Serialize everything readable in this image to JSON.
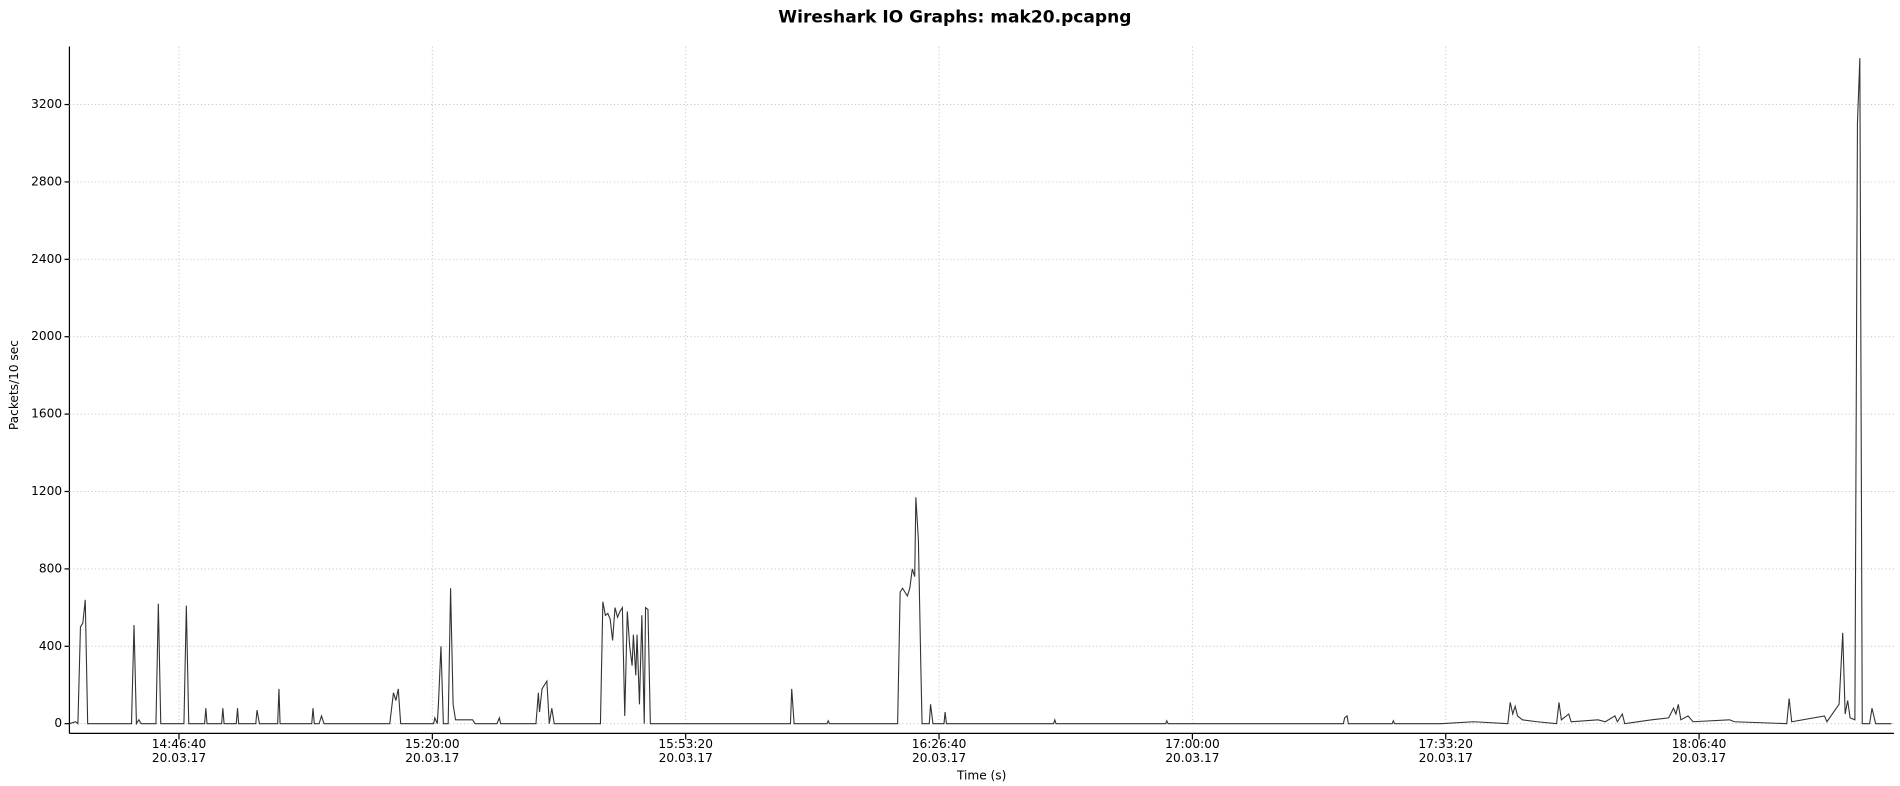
{
  "chart_data": {
    "type": "line",
    "title": "Wireshark IO Graphs: mak20.pcapng",
    "x_label": "Time (s)",
    "y_label": "Packets/10 sec",
    "color": "#333333",
    "grid": true,
    "xlim": [
      "14:32:15",
      "18:32:18"
    ],
    "xticks": [
      {
        "value": "14:46:40",
        "label": "14:46:40\n20.03.17"
      },
      {
        "value": "15:20:00",
        "label": "15:20:00\n20.03.17"
      },
      {
        "value": "15:53:20",
        "label": "15:53:20\n20.03.17"
      },
      {
        "value": "16:26:40",
        "label": "16:26:40\n20.03.17"
      },
      {
        "value": "17:00:00",
        "label": "17:00:00\n20.03.17"
      },
      {
        "value": "17:33:20",
        "label": "17:33:20\n20.03.17"
      },
      {
        "value": "18:06:40",
        "label": "18:06:40\n20.03.17"
      }
    ],
    "ylim": [
      0,
      3500
    ],
    "yticks": [
      0,
      400,
      800,
      1200,
      1600,
      2000,
      2400,
      2800,
      3200
    ],
    "x": [
      "14:32:15",
      "14:33:03",
      "14:33:22",
      "14:33:42",
      "14:34:01",
      "14:34:20",
      "14:34:39",
      "14:40:25",
      "14:40:45",
      "14:41:04",
      "14:41:23",
      "14:41:42",
      "14:43:38",
      "14:43:57",
      "14:44:16",
      "14:47:19",
      "14:47:38",
      "14:47:57",
      "14:50:02",
      "14:50:12",
      "14:50:21",
      "14:52:17",
      "14:52:26",
      "14:52:36",
      "14:54:12",
      "14:54:22",
      "14:54:31",
      "14:56:46",
      "14:56:56",
      "14:57:15",
      "14:59:39",
      "14:59:49",
      "14:59:58",
      "15:04:08",
      "15:04:18",
      "15:04:28",
      "15:05:06",
      "15:05:25",
      "15:05:45",
      "15:14:24",
      "15:14:53",
      "15:15:12",
      "15:15:31",
      "15:15:50",
      "15:20:10",
      "15:20:20",
      "15:20:39",
      "15:20:48",
      "15:21:08",
      "15:21:27",
      "15:22:05",
      "15:22:24",
      "15:22:44",
      "15:23:03",
      "15:25:18",
      "15:25:37",
      "15:28:30",
      "15:28:49",
      "15:28:59",
      "15:33:38",
      "15:33:57",
      "15:34:06",
      "15:34:26",
      "15:34:45",
      "15:35:04",
      "15:35:23",
      "15:35:43",
      "15:36:02",
      "15:42:07",
      "15:42:26",
      "15:42:46",
      "15:43:05",
      "15:43:24",
      "15:43:43",
      "15:44:02",
      "15:44:22",
      "15:44:41",
      "15:45:00",
      "15:45:19",
      "15:45:39",
      "15:45:58",
      "15:46:17",
      "15:46:27",
      "15:46:46",
      "15:46:56",
      "15:47:15",
      "15:47:34",
      "15:47:53",
      "15:48:03",
      "15:48:22",
      "15:48:41",
      "16:07:07",
      "16:07:17",
      "16:07:36",
      "16:11:56",
      "16:12:05",
      "16:12:15",
      "16:21:13",
      "16:21:33",
      "16:21:52",
      "16:22:11",
      "16:22:30",
      "16:22:49",
      "16:23:09",
      "16:23:28",
      "16:23:37",
      "16:23:57",
      "16:24:16",
      "16:24:26",
      "16:25:23",
      "16:25:33",
      "16:25:52",
      "16:27:19",
      "16:27:28",
      "16:27:38",
      "16:41:44",
      "16:41:54",
      "16:42:03",
      "16:56:29",
      "16:56:38",
      "16:56:48",
      "17:19:52",
      "17:20:02",
      "17:20:21",
      "17:20:31",
      "17:26:17",
      "17:26:26",
      "17:26:36",
      "17:32:41",
      "17:37:01",
      "17:41:30",
      "17:41:49",
      "17:42:09",
      "17:42:28",
      "17:42:47",
      "17:43:25",
      "17:45:21",
      "17:47:55",
      "17:48:14",
      "17:48:33",
      "17:49:31",
      "17:49:50",
      "17:53:22",
      "17:54:19",
      "17:55:36",
      "17:55:55",
      "17:56:34",
      "17:56:53",
      "18:00:25",
      "18:02:40",
      "18:03:18",
      "18:03:37",
      "18:03:56",
      "18:04:16",
      "18:05:13",
      "18:05:52",
      "18:10:40",
      "18:11:18",
      "18:18:12",
      "18:18:31",
      "18:18:51",
      "18:23:10",
      "18:23:29",
      "18:25:05",
      "18:25:34",
      "18:25:53",
      "18:26:13",
      "18:26:32",
      "18:27:10",
      "18:27:30",
      "18:27:49",
      "18:28:08",
      "18:29:06",
      "18:29:25",
      "18:29:54",
      "18:31:59"
    ],
    "values": [
      0,
      10,
      0,
      500,
      520,
      640,
      0,
      0,
      510,
      0,
      20,
      0,
      0,
      620,
      0,
      0,
      610,
      0,
      0,
      80,
      0,
      0,
      80,
      0,
      0,
      80,
      0,
      0,
      70,
      0,
      0,
      180,
      0,
      0,
      80,
      0,
      0,
      40,
      0,
      0,
      160,
      120,
      180,
      0,
      0,
      30,
      0,
      100,
      400,
      0,
      0,
      700,
      100,
      20,
      20,
      0,
      0,
      30,
      0,
      0,
      160,
      60,
      180,
      200,
      220,
      0,
      80,
      0,
      0,
      630,
      560,
      570,
      540,
      430,
      600,
      550,
      580,
      600,
      40,
      580,
      400,
      300,
      460,
      250,
      460,
      100,
      560,
      0,
      600,
      590,
      0,
      0,
      180,
      0,
      0,
      15,
      0,
      0,
      680,
      700,
      680,
      660,
      700,
      800,
      760,
      1170,
      950,
      300,
      0,
      0,
      100,
      0,
      0,
      60,
      0,
      0,
      20,
      0,
      0,
      15,
      0,
      0,
      30,
      40,
      0,
      0,
      15,
      0,
      0,
      10,
      0,
      110,
      50,
      90,
      40,
      20,
      10,
      0,
      110,
      20,
      50,
      10,
      20,
      10,
      40,
      10,
      50,
      0,
      20,
      30,
      80,
      50,
      100,
      20,
      40,
      10,
      20,
      10,
      0,
      130,
      10,
      40,
      10,
      100,
      470,
      50,
      120,
      30,
      20,
      3100,
      3440,
      0,
      0,
      80,
      0,
      0
    ]
  }
}
